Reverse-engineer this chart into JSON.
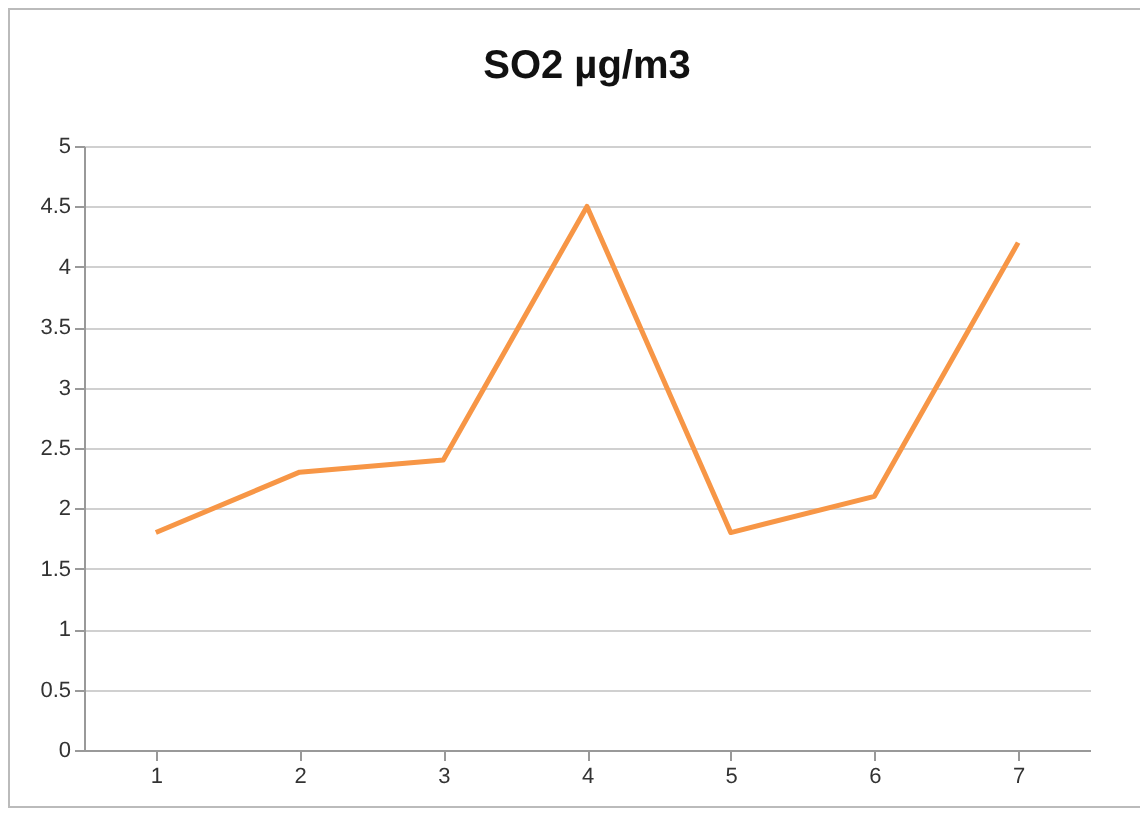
{
  "chart_data": {
    "type": "line",
    "title": "SO2 µg/m3",
    "categories": [
      "1",
      "2",
      "3",
      "4",
      "5",
      "6",
      "7"
    ],
    "series": [
      {
        "color": "#f79646",
        "values": [
          1.8,
          2.3,
          2.4,
          4.5,
          1.8,
          2.1,
          4.2
        ]
      }
    ],
    "ylim": [
      0,
      5
    ],
    "yticks": [
      0,
      0.5,
      1,
      1.5,
      2,
      2.5,
      3,
      3.5,
      4,
      4.5,
      5
    ],
    "grid": "y",
    "marker": "none"
  }
}
